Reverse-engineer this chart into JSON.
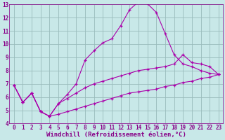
{
  "background_color": "#c8e8e8",
  "line_color": "#aa00aa",
  "grid_color": "#99bbbb",
  "xlabel": "Windchill (Refroidissement éolien,°C)",
  "xlim": [
    -0.5,
    23.5
  ],
  "ylim": [
    4,
    13
  ],
  "xticks": [
    0,
    1,
    2,
    3,
    4,
    5,
    6,
    7,
    8,
    9,
    10,
    11,
    12,
    13,
    14,
    15,
    16,
    17,
    18,
    19,
    20,
    21,
    22,
    23
  ],
  "yticks": [
    4,
    5,
    6,
    7,
    8,
    9,
    10,
    11,
    12,
    13
  ],
  "line1_x": [
    0,
    1,
    2,
    3,
    4,
    5,
    6,
    7,
    8,
    9,
    10,
    11,
    12,
    13,
    14,
    15,
    16,
    17,
    18,
    19,
    20,
    21,
    22,
    23
  ],
  "line1_y": [
    6.9,
    5.6,
    6.3,
    4.9,
    4.55,
    5.5,
    6.2,
    7.0,
    8.8,
    9.5,
    10.1,
    10.4,
    11.4,
    12.6,
    13.2,
    13.05,
    12.4,
    10.8,
    9.2,
    8.5,
    8.3,
    8.0,
    7.8,
    7.7
  ],
  "line2_x": [
    0,
    1,
    2,
    3,
    4,
    5,
    6,
    7,
    8,
    9,
    10,
    11,
    12,
    13,
    14,
    15,
    16,
    17,
    18,
    19,
    20,
    21,
    22,
    23
  ],
  "line2_y": [
    6.9,
    5.6,
    6.3,
    4.9,
    4.55,
    5.5,
    5.9,
    6.3,
    6.7,
    7.0,
    7.2,
    7.4,
    7.6,
    7.8,
    8.0,
    8.1,
    8.2,
    8.3,
    8.5,
    9.2,
    8.6,
    8.5,
    8.3,
    7.7
  ],
  "line3_x": [
    0,
    1,
    2,
    3,
    4,
    5,
    6,
    7,
    8,
    9,
    10,
    11,
    12,
    13,
    14,
    15,
    16,
    17,
    18,
    19,
    20,
    21,
    22,
    23
  ],
  "line3_y": [
    6.9,
    5.6,
    6.3,
    4.9,
    4.55,
    4.7,
    4.9,
    5.1,
    5.3,
    5.5,
    5.7,
    5.9,
    6.1,
    6.3,
    6.4,
    6.5,
    6.6,
    6.8,
    6.9,
    7.1,
    7.2,
    7.4,
    7.5,
    7.7
  ],
  "label_color": "#880088",
  "tick_fontsize": 5.5,
  "xlabel_fontsize": 6.5
}
